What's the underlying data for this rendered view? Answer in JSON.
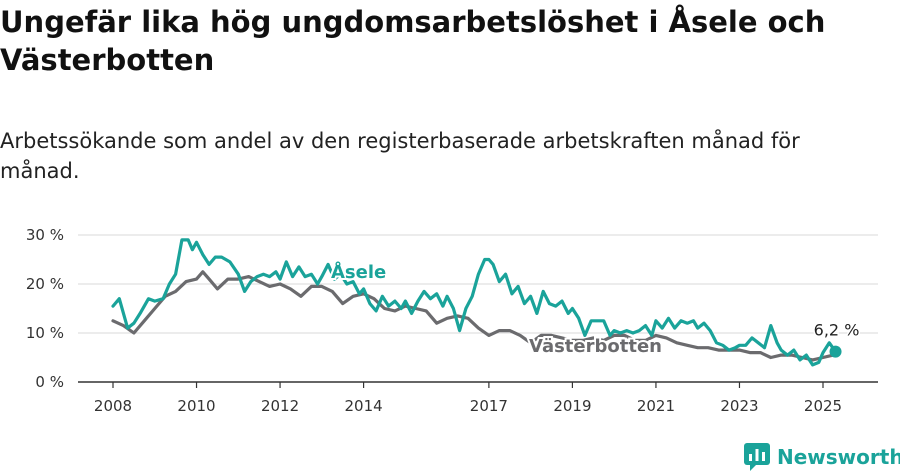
{
  "title": "Ungefär lika hög ungdomsarbetslöshet i Åsele och Västerbotten",
  "subtitle": "Arbetssökande som andel av den registerbaserade arbetskraften månad för månad.",
  "logo": {
    "text": "Newsworthy",
    "icon": "newsworthy-chart-icon"
  },
  "colors": {
    "asele": "#1aa39a",
    "vasterbotten": "#6b6b6e",
    "grid": "#d9d9d9",
    "axis": "#333333"
  },
  "chart_data": {
    "type": "line",
    "y_ticks": [
      {
        "value": 0,
        "label": "0 %"
      },
      {
        "value": 10,
        "label": "10 %"
      },
      {
        "value": 20,
        "label": "20 %"
      },
      {
        "value": 30,
        "label": "30 %"
      }
    ],
    "x_ticks": [
      {
        "value": 2008,
        "label": "2008"
      },
      {
        "value": 2010,
        "label": "2010"
      },
      {
        "value": 2012,
        "label": "2012"
      },
      {
        "value": 2014,
        "label": "2014"
      },
      {
        "value": 2017,
        "label": "2017"
      },
      {
        "value": 2019,
        "label": "2019"
      },
      {
        "value": 2021,
        "label": "2021"
      },
      {
        "value": 2023,
        "label": "2023"
      },
      {
        "value": 2025,
        "label": "2025"
      }
    ],
    "xlim": [
      2007.1,
      2026.0
    ],
    "ylim": [
      0,
      30
    ],
    "grid": true,
    "series": [
      {
        "name": "Västerbotten",
        "x": [
          2008.0,
          2008.25,
          2008.5,
          2008.75,
          2009.0,
          2009.25,
          2009.5,
          2009.75,
          2010.0,
          2010.15,
          2010.3,
          2010.5,
          2010.75,
          2011.0,
          2011.25,
          2011.5,
          2011.75,
          2012.0,
          2012.25,
          2012.5,
          2012.75,
          2013.0,
          2013.25,
          2013.5,
          2013.75,
          2014.0,
          2014.25,
          2014.5,
          2014.75,
          2015.0,
          2015.25,
          2015.5,
          2015.75,
          2016.0,
          2016.25,
          2016.5,
          2016.75,
          2017.0,
          2017.25,
          2017.5,
          2017.75,
          2018.0,
          2018.25,
          2018.5,
          2018.75,
          2019.0,
          2019.25,
          2019.5,
          2019.75,
          2020.0,
          2020.25,
          2020.5,
          2020.75,
          2021.0,
          2021.25,
          2021.5,
          2021.75,
          2022.0,
          2022.25,
          2022.5,
          2022.75,
          2023.0,
          2023.25,
          2023.5,
          2023.75,
          2024.0,
          2024.25,
          2024.5,
          2024.75,
          2025.0,
          2025.25
        ],
        "values": [
          12.5,
          11.5,
          10.0,
          12.5,
          15.0,
          17.5,
          18.5,
          20.5,
          21.0,
          22.5,
          21.0,
          19.0,
          21.0,
          21.0,
          21.5,
          20.5,
          19.5,
          20.0,
          19.0,
          17.5,
          19.5,
          19.5,
          18.5,
          16.0,
          17.5,
          18.0,
          17.0,
          15.0,
          14.5,
          15.5,
          15.0,
          14.5,
          12.0,
          13.0,
          13.5,
          13.0,
          11.0,
          9.5,
          10.5,
          10.5,
          9.5,
          8.0,
          9.5,
          9.5,
          9.0,
          8.5,
          8.5,
          9.0,
          8.5,
          9.5,
          9.5,
          8.5,
          8.5,
          9.5,
          9.0,
          8.0,
          7.5,
          7.0,
          7.0,
          6.5,
          6.5,
          6.5,
          6.0,
          6.0,
          5.0,
          5.5,
          5.5,
          5.0,
          4.5,
          5.0,
          5.5
        ]
      },
      {
        "name": "Åsele",
        "x": [
          2008.0,
          2008.15,
          2008.35,
          2008.5,
          2008.65,
          2008.85,
          2009.0,
          2009.2,
          2009.35,
          2009.5,
          2009.65,
          2009.8,
          2009.9,
          2010.0,
          2010.15,
          2010.3,
          2010.45,
          2010.6,
          2010.8,
          2011.0,
          2011.15,
          2011.3,
          2011.45,
          2011.6,
          2011.75,
          2011.9,
          2012.0,
          2012.15,
          2012.3,
          2012.45,
          2012.6,
          2012.75,
          2012.9,
          2013.0,
          2013.15,
          2013.3,
          2013.45,
          2013.6,
          2013.75,
          2013.9,
          2014.0,
          2014.15,
          2014.3,
          2014.45,
          2014.6,
          2014.75,
          2014.9,
          2015.0,
          2015.15,
          2015.3,
          2015.45,
          2015.6,
          2015.75,
          2015.9,
          2016.0,
          2016.15,
          2016.3,
          2016.45,
          2016.6,
          2016.75,
          2016.9,
          2017.0,
          2017.1,
          2017.25,
          2017.4,
          2017.55,
          2017.7,
          2017.85,
          2018.0,
          2018.15,
          2018.3,
          2018.45,
          2018.6,
          2018.75,
          2018.9,
          2019.0,
          2019.15,
          2019.3,
          2019.45,
          2019.6,
          2019.75,
          2019.9,
          2020.0,
          2020.15,
          2020.3,
          2020.45,
          2020.6,
          2020.75,
          2020.9,
          2021.0,
          2021.15,
          2021.3,
          2021.45,
          2021.6,
          2021.75,
          2021.9,
          2022.0,
          2022.15,
          2022.3,
          2022.45,
          2022.6,
          2022.75,
          2022.9,
          2023.0,
          2023.15,
          2023.3,
          2023.45,
          2023.6,
          2023.75,
          2023.9,
          2024.0,
          2024.15,
          2024.3,
          2024.45,
          2024.6,
          2024.75,
          2024.9,
          2025.0,
          2025.15,
          2025.3
        ],
        "values": [
          15.5,
          17.0,
          11.0,
          12.0,
          14.0,
          17.0,
          16.5,
          17.0,
          20.0,
          22.0,
          29.0,
          29.0,
          27.0,
          28.5,
          26.0,
          24.0,
          25.5,
          25.5,
          24.5,
          22.0,
          18.5,
          20.5,
          21.5,
          22.0,
          21.5,
          22.5,
          21.0,
          24.5,
          21.5,
          23.5,
          21.5,
          22.0,
          20.0,
          21.5,
          24.0,
          21.0,
          22.0,
          20.0,
          20.5,
          18.0,
          19.0,
          16.0,
          14.5,
          17.5,
          15.5,
          16.5,
          15.0,
          16.5,
          14.0,
          16.5,
          18.5,
          17.0,
          18.0,
          15.5,
          17.5,
          15.0,
          10.5,
          15.0,
          17.5,
          22.0,
          25.0,
          25.0,
          24.0,
          20.5,
          22.0,
          18.0,
          19.5,
          16.0,
          17.5,
          14.0,
          18.5,
          16.0,
          15.5,
          16.5,
          14.0,
          15.0,
          13.0,
          9.5,
          12.5,
          12.5,
          12.5,
          9.5,
          10.5,
          10.0,
          10.5,
          10.0,
          10.5,
          11.5,
          9.5,
          12.5,
          11.0,
          13.0,
          11.0,
          12.5,
          12.0,
          12.5,
          11.0,
          12.0,
          10.5,
          8.0,
          7.5,
          6.5,
          7.0,
          7.5,
          7.5,
          9.0,
          8.0,
          7.0,
          11.5,
          8.0,
          6.5,
          5.5,
          6.5,
          4.5,
          5.5,
          3.5,
          4.0,
          6.0,
          8.0,
          6.2
        ]
      }
    ],
    "labels": [
      {
        "series": "Åsele",
        "text": "Åsele"
      },
      {
        "series": "Västerbotten",
        "text": "Västerbotten"
      },
      {
        "series": "Åsele",
        "text": "6,2 %",
        "x": 2025.3,
        "value": 6.2
      }
    ]
  }
}
